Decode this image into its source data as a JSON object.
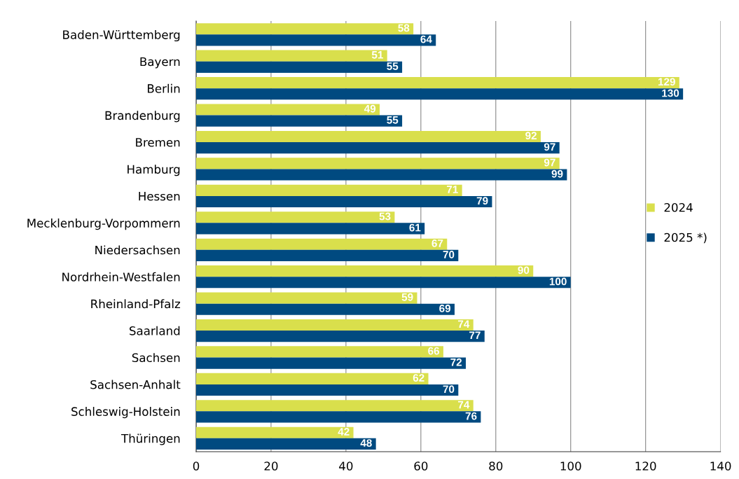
{
  "chart_data": {
    "type": "bar",
    "orientation": "horizontal",
    "categories": [
      "Baden-Württemberg",
      "Bayern",
      "Berlin",
      "Brandenburg",
      "Bremen",
      "Hamburg",
      "Hessen",
      "Mecklenburg-Vorpommern",
      "Niedersachsen",
      "Nordrhein-Westfalen",
      "Rheinland-Pfalz",
      "Saarland",
      "Sachsen",
      "Sachsen-Anhalt",
      "Schleswig-Holstein",
      "Thüringen"
    ],
    "series": [
      {
        "name": "2024",
        "color": "#d9df4c",
        "values": [
          58,
          51,
          129,
          49,
          92,
          97,
          71,
          53,
          67,
          90,
          59,
          74,
          66,
          62,
          74,
          42
        ]
      },
      {
        "name": "2025 *)",
        "color": "#004a80",
        "values": [
          64,
          55,
          130,
          55,
          97,
          99,
          79,
          61,
          70,
          100,
          69,
          77,
          72,
          70,
          76,
          48
        ]
      }
    ],
    "xlim": [
      0,
      140
    ],
    "xticks": [
      0,
      20,
      40,
      60,
      80,
      100,
      120,
      140
    ],
    "grid": "x",
    "legend": "right",
    "data_labels": true
  }
}
